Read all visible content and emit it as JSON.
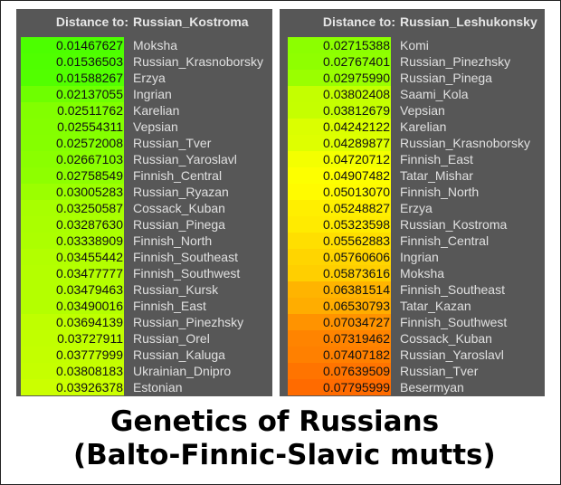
{
  "panels": [
    {
      "header_label": "Distance to:",
      "target": "Russian_Kostroma",
      "rows": [
        {
          "value": "0.01467627",
          "name": "Moksha"
        },
        {
          "value": "0.01536503",
          "name": "Russian_Krasnoborsky"
        },
        {
          "value": "0.01588267",
          "name": "Erzya"
        },
        {
          "value": "0.02137055",
          "name": "Ingrian"
        },
        {
          "value": "0.02511762",
          "name": "Karelian"
        },
        {
          "value": "0.02554311",
          "name": "Vepsian"
        },
        {
          "value": "0.02572008",
          "name": "Russian_Tver"
        },
        {
          "value": "0.02667103",
          "name": "Russian_Yaroslavl"
        },
        {
          "value": "0.02758549",
          "name": "Finnish_Central"
        },
        {
          "value": "0.03005283",
          "name": "Russian_Ryazan"
        },
        {
          "value": "0.03250587",
          "name": "Cossack_Kuban"
        },
        {
          "value": "0.03287630",
          "name": "Russian_Pinega"
        },
        {
          "value": "0.03338909",
          "name": "Finnish_North"
        },
        {
          "value": "0.03455442",
          "name": "Finnish_Southeast"
        },
        {
          "value": "0.03477777",
          "name": "Finnish_Southwest"
        },
        {
          "value": "0.03479463",
          "name": "Russian_Kursk"
        },
        {
          "value": "0.03490016",
          "name": "Finnish_East"
        },
        {
          "value": "0.03694139",
          "name": "Russian_Pinezhsky"
        },
        {
          "value": "0.03727911",
          "name": "Russian_Orel"
        },
        {
          "value": "0.03777999",
          "name": "Russian_Kaluga"
        },
        {
          "value": "0.03808183",
          "name": "Ukrainian_Dnipro"
        },
        {
          "value": "0.03926378",
          "name": "Estonian"
        }
      ]
    },
    {
      "header_label": "Distance to:",
      "target": "Russian_Leshukonsky",
      "rows": [
        {
          "value": "0.02715388",
          "name": "Komi"
        },
        {
          "value": "0.02767401",
          "name": "Russian_Pinezhsky"
        },
        {
          "value": "0.02975990",
          "name": "Russian_Pinega"
        },
        {
          "value": "0.03802408",
          "name": "Saami_Kola"
        },
        {
          "value": "0.03812679",
          "name": "Vepsian"
        },
        {
          "value": "0.04242122",
          "name": "Karelian"
        },
        {
          "value": "0.04289877",
          "name": "Russian_Krasnoborsky"
        },
        {
          "value": "0.04720712",
          "name": "Finnish_East"
        },
        {
          "value": "0.04907482",
          "name": "Tatar_Mishar"
        },
        {
          "value": "0.05013070",
          "name": "Finnish_North"
        },
        {
          "value": "0.05248827",
          "name": "Erzya"
        },
        {
          "value": "0.05323598",
          "name": "Russian_Kostroma"
        },
        {
          "value": "0.05562883",
          "name": "Finnish_Central"
        },
        {
          "value": "0.05760606",
          "name": "Ingrian"
        },
        {
          "value": "0.05873616",
          "name": "Moksha"
        },
        {
          "value": "0.06381514",
          "name": "Finnish_Southeast"
        },
        {
          "value": "0.06530793",
          "name": "Tatar_Kazan"
        },
        {
          "value": "0.07034727",
          "name": "Finnish_Southwest"
        },
        {
          "value": "0.07319462",
          "name": "Cossack_Kuban"
        },
        {
          "value": "0.07407182",
          "name": "Russian_Yaroslavl"
        },
        {
          "value": "0.07639509",
          "name": "Russian_Tver"
        },
        {
          "value": "0.07795999",
          "name": "Besermyan"
        }
      ]
    }
  ],
  "colors": {
    "panel_bg": "#575757",
    "low": "#4cff00",
    "mid": "#ffff00",
    "high": "#ff6a00"
  },
  "caption": {
    "line1": "Genetics of Russians",
    "line2": "(Balto-Finnic-Slavic mutts)"
  }
}
